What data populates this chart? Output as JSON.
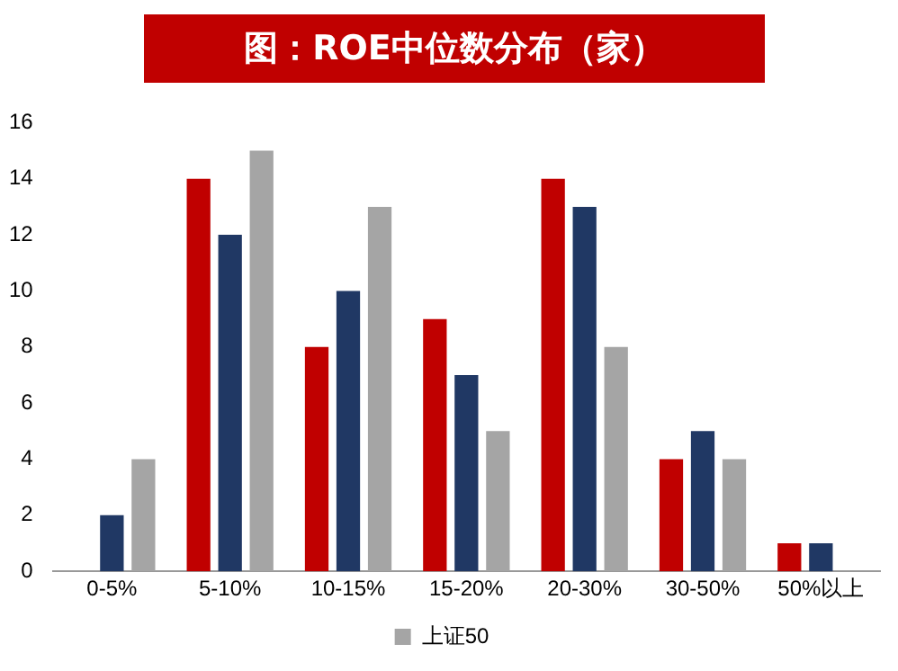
{
  "chart_data": {
    "type": "bar",
    "title": "图：ROE中位数分布（家）",
    "categories": [
      "0-5%",
      "5-10%",
      "10-15%",
      "15-20%",
      "20-30%",
      "30-50%",
      "50%以上"
    ],
    "series": [
      {
        "color": "#c00000",
        "values": [
          0,
          14,
          8,
          9,
          14,
          4,
          1
        ]
      },
      {
        "color": "#203864",
        "values": [
          2,
          12,
          10,
          7,
          13,
          5,
          1
        ]
      },
      {
        "name": "上证50",
        "color": "#a5a5a5",
        "values": [
          4,
          15,
          13,
          5,
          8,
          4,
          0
        ]
      }
    ],
    "ylim": [
      0,
      16
    ],
    "yticks": [
      0,
      2,
      4,
      6,
      8,
      10,
      12,
      14,
      16
    ],
    "grid": false,
    "legend": "bottom"
  }
}
